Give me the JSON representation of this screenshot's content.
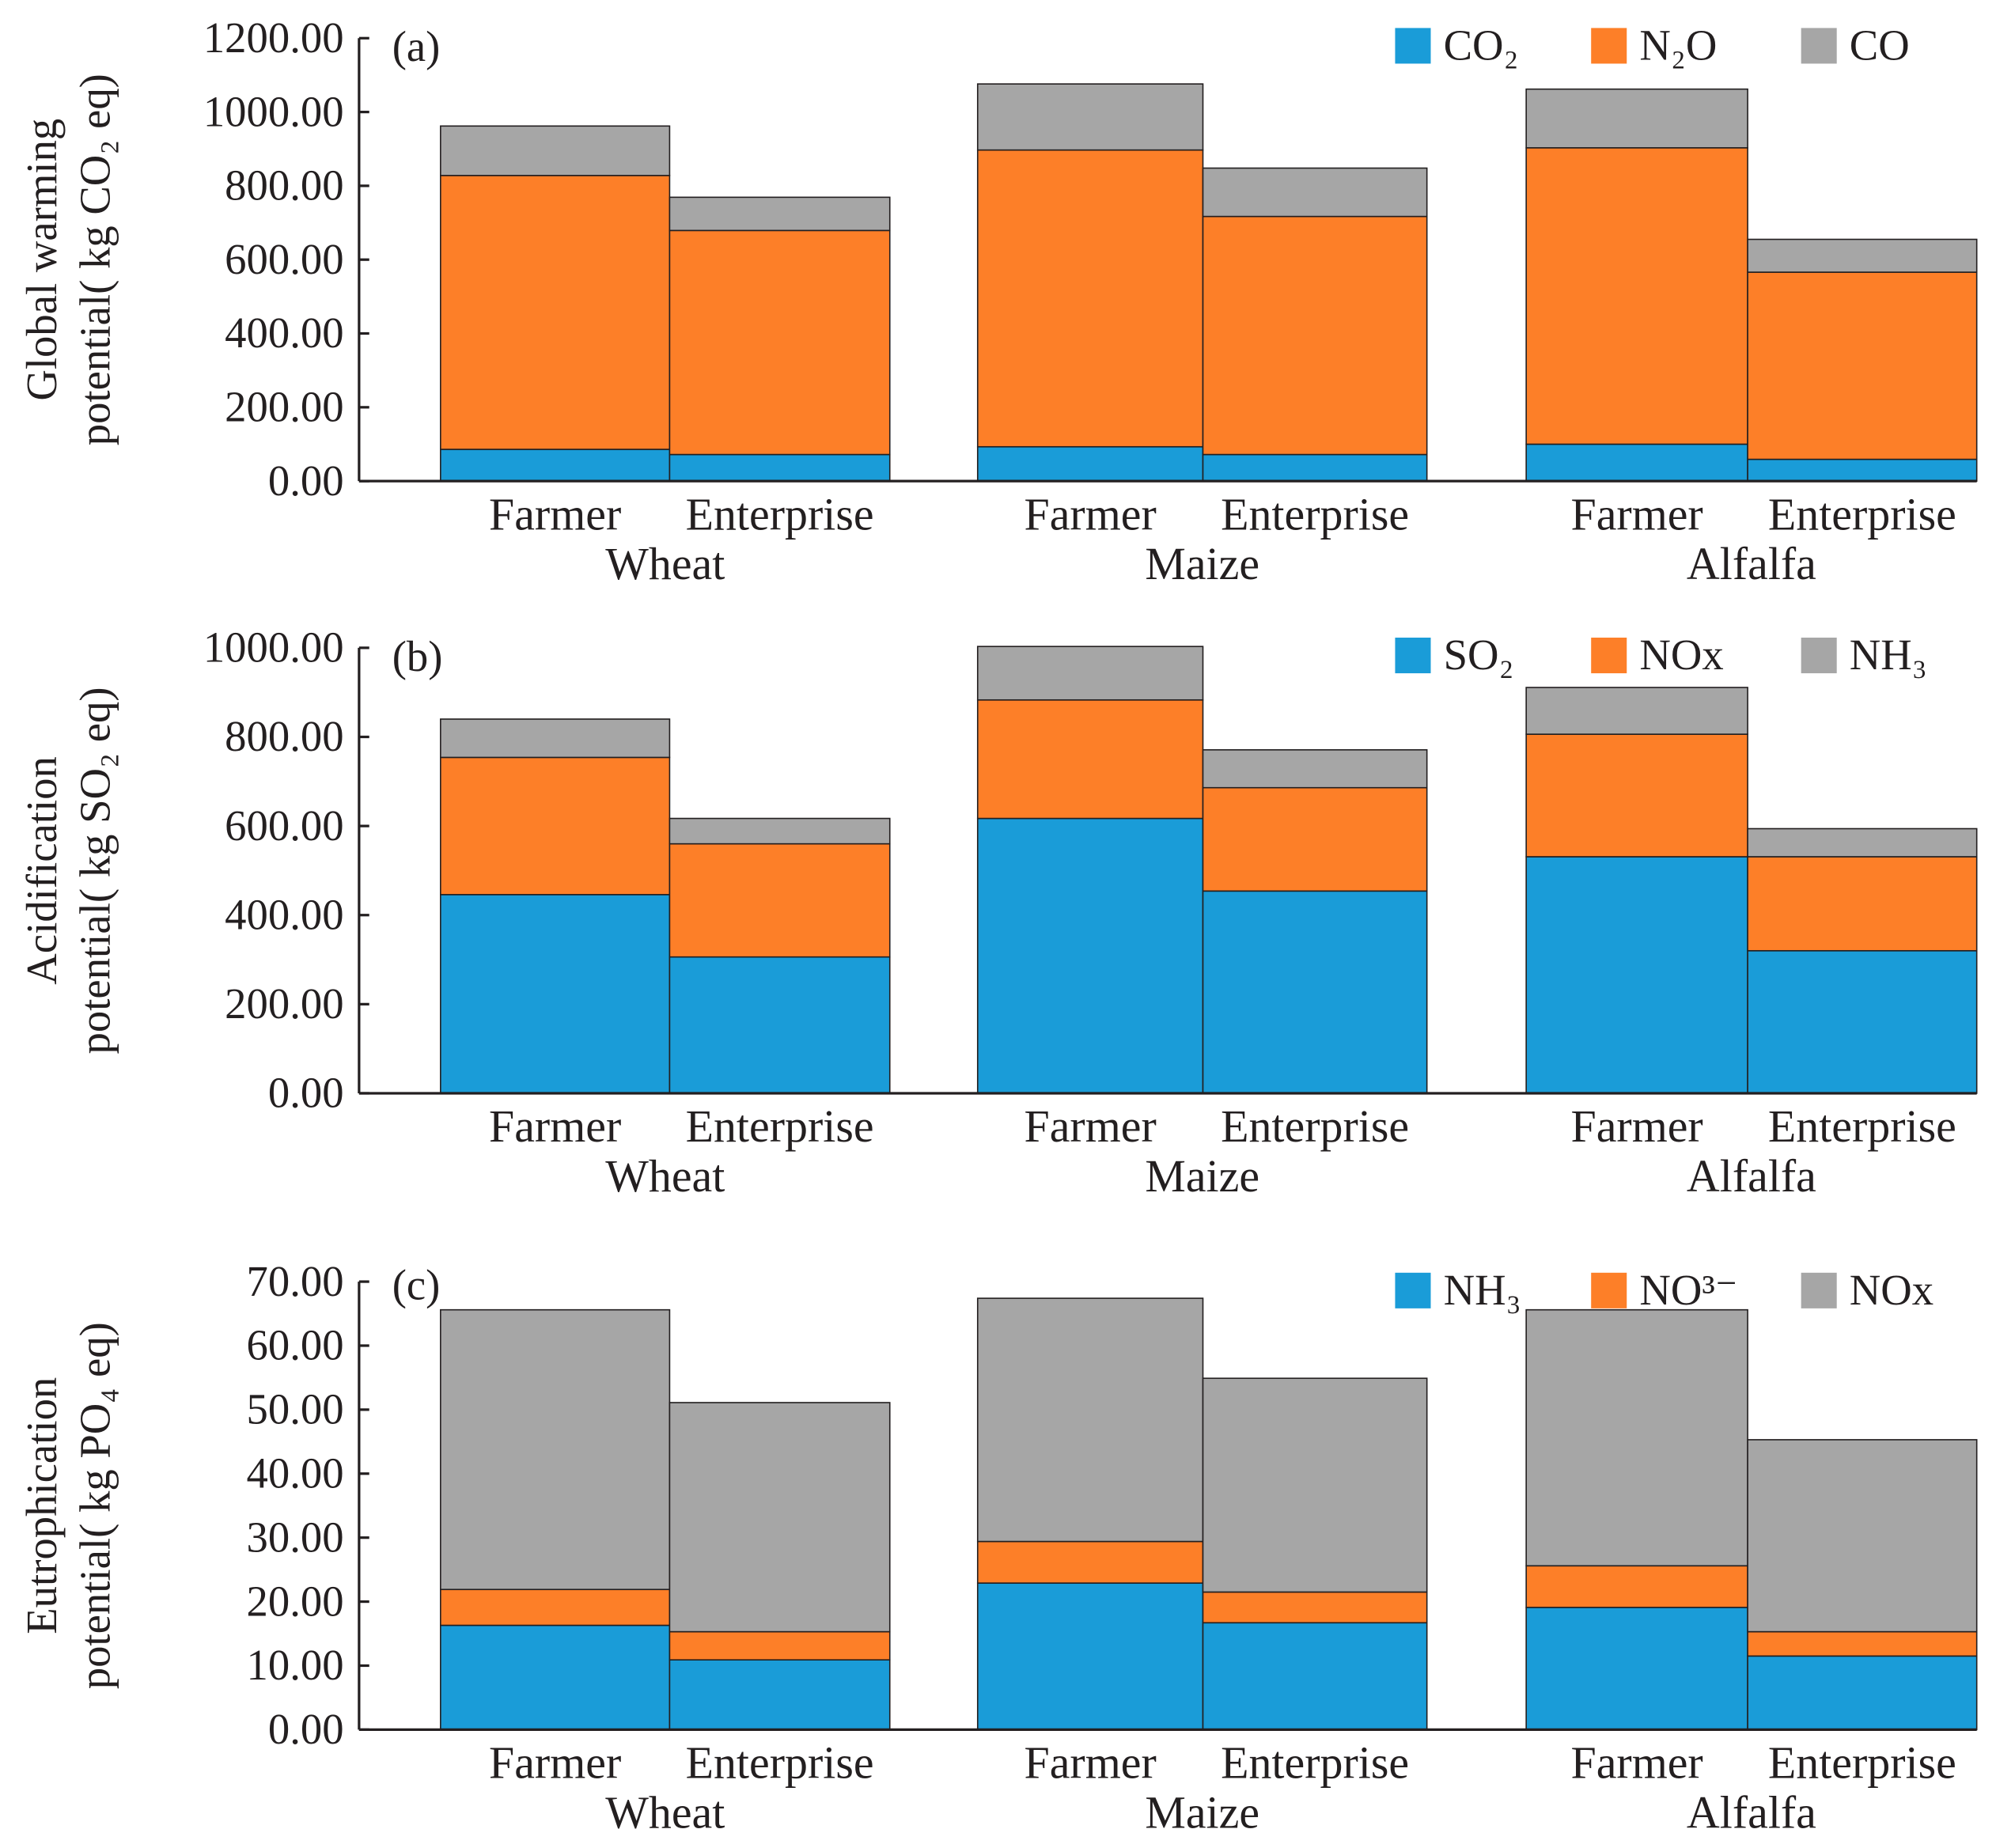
{
  "chart_data": [
    {
      "type": "bar",
      "stacked": true,
      "panel_label": "(a)",
      "ylabel": [
        "Global warming",
        "potential( kg CO₂ eq)"
      ],
      "ylim": [
        0,
        1200
      ],
      "yticks": [
        "0.00",
        "200.00",
        "400.00",
        "600.00",
        "800.00",
        "1000.00",
        "1200.00"
      ],
      "groups": [
        "Wheat",
        "Maize",
        "Alfalfa"
      ],
      "categories": [
        "Farmer",
        "Enterprise"
      ],
      "legend_position": "top-right",
      "series": [
        {
          "name": "CO₂",
          "color": "#1a9cd8",
          "values": [
            [
              86,
              72
            ],
            [
              93,
              72
            ],
            [
              100,
              59
            ]
          ]
        },
        {
          "name": "N₂O",
          "color": "#fd7f28",
          "values": [
            [
              742,
              607
            ],
            [
              804,
              645
            ],
            [
              803,
              507
            ]
          ]
        },
        {
          "name": "CO",
          "color": "#a6a6a6",
          "values": [
            [
              134,
              90
            ],
            [
              179,
              131
            ],
            [
              159,
              89
            ]
          ]
        }
      ]
    },
    {
      "type": "bar",
      "stacked": true,
      "panel_label": "(b)",
      "ylabel": [
        "Acidification",
        "potential( kg SO₂ eq)"
      ],
      "ylim": [
        0,
        1000
      ],
      "yticks": [
        "0.00",
        "200.00",
        "400.00",
        "600.00",
        "800.00",
        "1000.00"
      ],
      "groups": [
        "Wheat",
        "Maize",
        "Alfalfa"
      ],
      "categories": [
        "Farmer",
        "Enterprise"
      ],
      "legend_position": "top-right",
      "series": [
        {
          "name": "SO₂",
          "color": "#1a9cd8",
          "values": [
            [
              446,
              306
            ],
            [
              617,
              454
            ],
            [
              531,
              320
            ]
          ]
        },
        {
          "name": "NOx",
          "color": "#fd7f28",
          "values": [
            [
              308,
              254
            ],
            [
              266,
              232
            ],
            [
              275,
              211
            ]
          ]
        },
        {
          "name": "NH₃",
          "color": "#a6a6a6",
          "values": [
            [
              86,
              57
            ],
            [
              120,
              85
            ],
            [
              105,
              63
            ]
          ]
        }
      ]
    },
    {
      "type": "bar",
      "stacked": true,
      "panel_label": "(c)",
      "ylabel": [
        "Eutrophication",
        "potential( kg PO₄ eq)"
      ],
      "ylim": [
        0,
        70
      ],
      "yticks": [
        "0.00",
        "10.00",
        "20.00",
        "30.00",
        "40.00",
        "50.00",
        "60.00",
        "70.00"
      ],
      "groups": [
        "Wheat",
        "Maize",
        "Alfalfa"
      ],
      "categories": [
        "Farmer",
        "Enterprise"
      ],
      "legend_position": "top-right",
      "series": [
        {
          "name": "NH₃",
          "color": "#1a9cd8",
          "values": [
            [
              16.3,
              10.9
            ],
            [
              22.9,
              16.7
            ],
            [
              19.1,
              11.5
            ]
          ]
        },
        {
          "name": "NO³⁻",
          "color": "#fd7f28",
          "values": [
            [
              5.6,
              4.4
            ],
            [
              6.5,
              4.8
            ],
            [
              6.5,
              3.8
            ]
          ]
        },
        {
          "name": "NOx",
          "color": "#a6a6a6",
          "values": [
            [
              43.7,
              35.8
            ],
            [
              38.0,
              33.4
            ],
            [
              40.0,
              30.0
            ]
          ]
        }
      ]
    }
  ]
}
